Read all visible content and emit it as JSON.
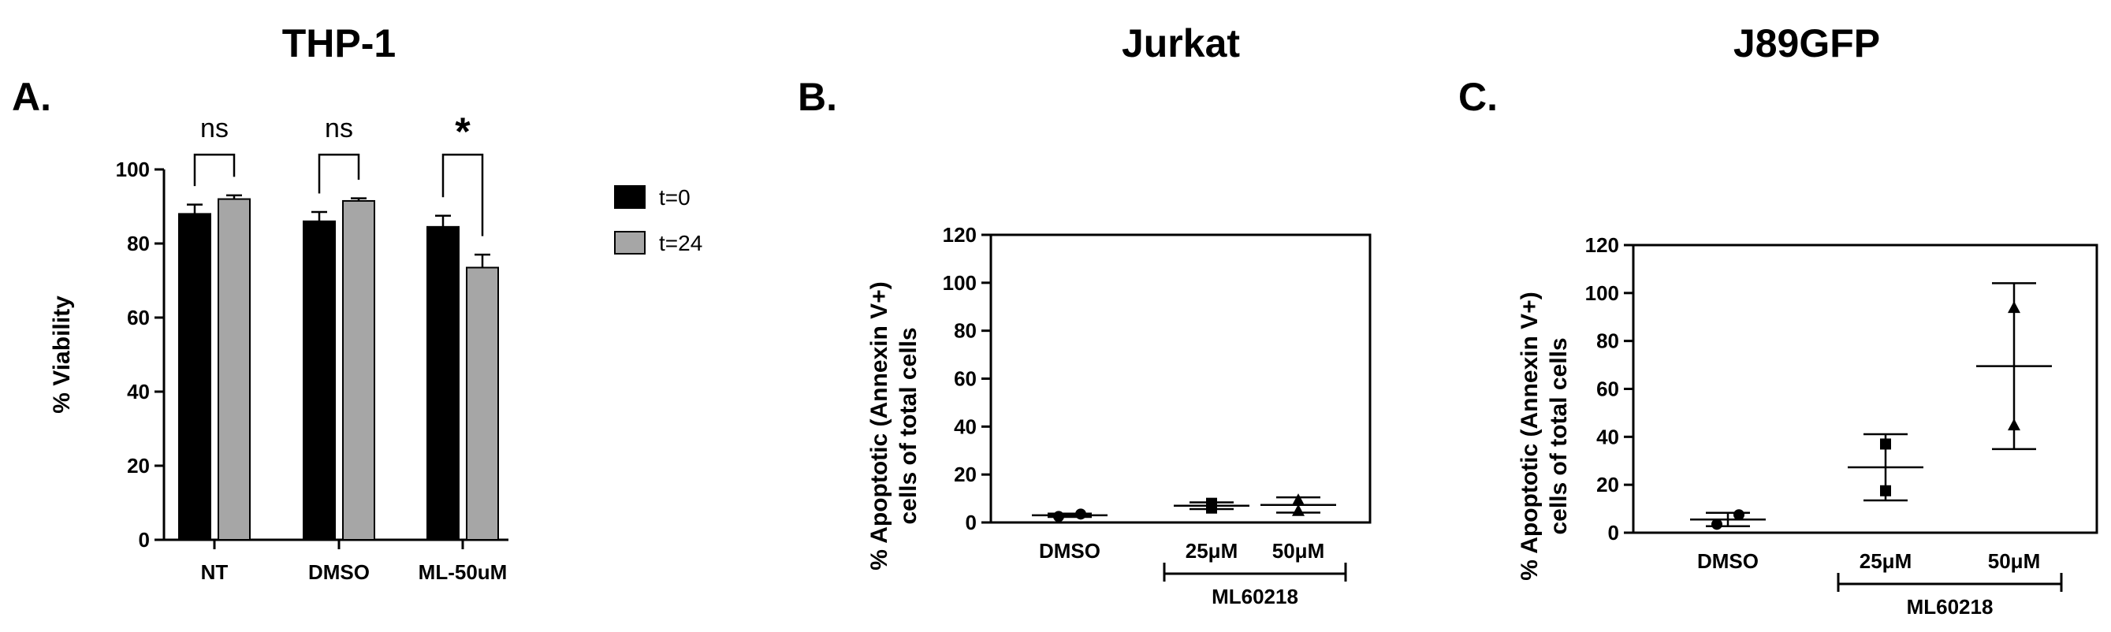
{
  "panels": {
    "a": {
      "letter": "A.",
      "title": "THP-1"
    },
    "b": {
      "letter": "B.",
      "title": "Jurkat"
    },
    "c": {
      "letter": "C.",
      "title": "J89GFP"
    }
  },
  "chart_data": [
    {
      "type": "bar",
      "title": "THP-1",
      "ylabel": "% Viability",
      "xlabel": "",
      "ylim": [
        0,
        100
      ],
      "yticks": [
        0,
        20,
        40,
        60,
        80,
        100
      ],
      "categories": [
        "NT",
        "DMSO",
        "ML-50uM"
      ],
      "series": [
        {
          "name": "t=0",
          "color": "#000000",
          "values": [
            88,
            86,
            84.5
          ],
          "errors": [
            2.5,
            2.5,
            3
          ]
        },
        {
          "name": "t=24",
          "color": "#a6a6a6",
          "values": [
            92,
            91.5,
            73.5
          ],
          "errors": [
            1,
            0.7,
            3.5
          ]
        }
      ],
      "significance": [
        "ns",
        "ns",
        "*"
      ],
      "legend": "right",
      "grid": false
    },
    {
      "type": "scatter",
      "title": "Jurkat",
      "ylabel_lines": [
        "% Apoptotic (Annexin V+)",
        "cells of total cells"
      ],
      "ylim": [
        0,
        120
      ],
      "yticks": [
        0,
        20,
        40,
        60,
        80,
        100,
        120
      ],
      "categories": [
        "DMSO",
        "25μM",
        "50μM"
      ],
      "group_label": "ML60218",
      "groups": [
        {
          "category": "DMSO",
          "marker": "circle",
          "points": [
            2.5,
            3.5
          ],
          "mean": 3,
          "sd": 0.7
        },
        {
          "category": "25μM",
          "marker": "square",
          "points": [
            6,
            8
          ],
          "mean": 7,
          "sd": 1.4
        },
        {
          "category": "50μM",
          "marker": "triangle",
          "points": [
            5,
            9.5
          ],
          "mean": 7.3,
          "sd": 3.2
        }
      ],
      "grid": false
    },
    {
      "type": "scatter",
      "title": "J89GFP",
      "ylabel_lines": [
        "% Apoptotic (Annexin V+)",
        "cells of total cells"
      ],
      "ylim": [
        0,
        120
      ],
      "yticks": [
        0,
        20,
        40,
        60,
        80,
        100,
        120
      ],
      "categories": [
        "DMSO",
        "25μM",
        "50μM"
      ],
      "group_label": "ML60218",
      "groups": [
        {
          "category": "DMSO",
          "marker": "circle",
          "points": [
            3.5,
            7.5
          ],
          "mean": 5.5,
          "sd": 2.8
        },
        {
          "category": "25μM",
          "marker": "square",
          "points": [
            17.5,
            37
          ],
          "mean": 27.3,
          "sd": 13.8
        },
        {
          "category": "50μM",
          "marker": "triangle",
          "points": [
            45,
            94
          ],
          "mean": 69.5,
          "sd": 34.6
        }
      ],
      "grid": false
    }
  ]
}
